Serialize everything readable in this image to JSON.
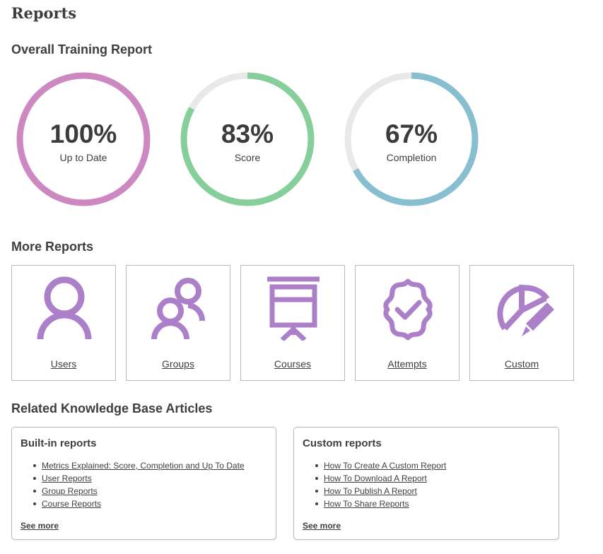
{
  "page": {
    "title": "Reports"
  },
  "overall": {
    "heading": "Overall Training Report",
    "gauges": [
      {
        "value": "100%",
        "label": "Up to Date",
        "percent": 100,
        "color": "#cd87c1"
      },
      {
        "value": "83%",
        "label": "Score",
        "percent": 83,
        "color": "#86cf9b"
      },
      {
        "value": "67%",
        "label": "Completion",
        "percent": 67,
        "color": "#87bfd0"
      }
    ],
    "track_color": "#e8e8e8"
  },
  "more": {
    "heading": "More Reports",
    "icon_color": "#ac80c8",
    "tiles": [
      {
        "label": "Users",
        "icon": "user-icon"
      },
      {
        "label": "Groups",
        "icon": "group-icon"
      },
      {
        "label": "Courses",
        "icon": "presentation-board-icon"
      },
      {
        "label": "Attempts",
        "icon": "verified-badge-icon"
      },
      {
        "label": "Custom",
        "icon": "pie-chart-pencil-icon"
      }
    ]
  },
  "related": {
    "heading": "Related Knowledge Base Articles",
    "cards": [
      {
        "title": "Built-in reports",
        "links": [
          "Metrics Explained: Score, Completion and Up To Date",
          "User Reports",
          "Group Reports",
          "Course Reports"
        ],
        "see_more": "See more"
      },
      {
        "title": "Custom reports",
        "links": [
          "How To Create A Custom Report",
          "How To Download A Report",
          "How To Publish A Report",
          "How To Share Reports"
        ],
        "see_more": "See more"
      }
    ]
  }
}
